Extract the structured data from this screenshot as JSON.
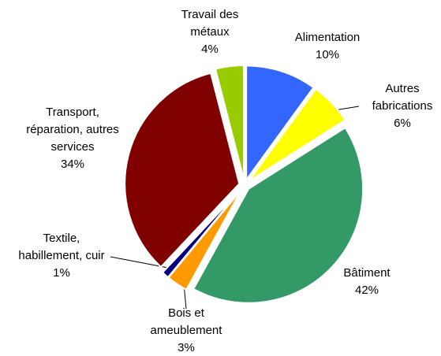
{
  "chart_data": {
    "type": "pie",
    "categories": [
      "Alimentation",
      "Autres\nfabrications",
      "Bâtiment",
      "Bois et\nameublement",
      "Textile,\nhabillement, cuir",
      "Transport,\nréparation, autres\nservices",
      "Travail des\nmétaux"
    ],
    "values": [
      10,
      6,
      42,
      3,
      1,
      34,
      4
    ],
    "value_labels": [
      "10%",
      "6%",
      "42%",
      "3%",
      "1%",
      "34%",
      "4%"
    ],
    "colors": [
      "#3366ff",
      "#ffff00",
      "#339966",
      "#ff9900",
      "#000080",
      "#800000",
      "#99cc00"
    ]
  }
}
